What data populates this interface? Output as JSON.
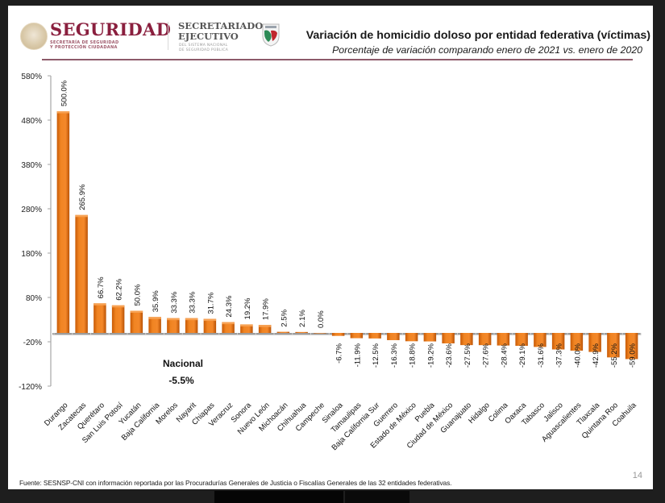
{
  "header": {
    "brand": "SEGURIDAD",
    "brand_sub_line1": "SECRETARÍA DE SEGURIDAD",
    "brand_sub_line2": "Y PROTECCIÓN CIUDADANA",
    "sec_line1": "SECRETARIADO",
    "sec_line2": "EJECUTIVO",
    "sec_sub_line1": "DEL SISTEMA NACIONAL",
    "sec_sub_line2": "DE SEGURIDAD PÚBLICA"
  },
  "chart_data": {
    "type": "bar",
    "title": "Variación de homicidio doloso por entidad federativa (víctimas)",
    "subtitle": "Porcentaje de variación comparando enero de 2021 vs. enero de 2020",
    "xlabel": "",
    "ylabel": "",
    "ylim": [
      -120,
      580
    ],
    "yticks": [
      580,
      480,
      380,
      280,
      180,
      80,
      -20,
      -120
    ],
    "ytick_labels": [
      "580%",
      "480%",
      "380%",
      "280%",
      "180%",
      "80%",
      "-20%",
      "-120%"
    ],
    "grid": false,
    "bar_color": "#E8761A",
    "categories": [
      "Durango",
      "Zacatecas",
      "Querétaro",
      "San Luis Potosí",
      "Yucatán",
      "Baja California",
      "Morelos",
      "Nayarit",
      "Chiapas",
      "Veracruz",
      "Sonora",
      "Nuevo León",
      "Michoacán",
      "Chihuahua",
      "Campeche",
      "Sinaloa",
      "Tamaulipas",
      "Baja California Sur",
      "Guerrero",
      "Estado de México",
      "Puebla",
      "Ciudad de México",
      "Guanajuato",
      "Hidalgo",
      "Colima",
      "Oaxaca",
      "Tabasco",
      "Jalisco",
      "Aguascalientes",
      "Tlaxcala",
      "Quintana Roo",
      "Coahuila"
    ],
    "values": [
      500.0,
      265.9,
      66.7,
      62.2,
      50.0,
      35.9,
      33.3,
      33.3,
      31.7,
      24.3,
      19.2,
      17.9,
      2.5,
      2.1,
      0.0,
      -6.7,
      -11.9,
      -12.5,
      -16.3,
      -18.8,
      -19.2,
      -23.6,
      -27.5,
      -27.6,
      -28.4,
      -29.1,
      -31.6,
      -37.3,
      -40.0,
      -42.9,
      -55.2,
      -59.0
    ],
    "value_labels": [
      "500.0%",
      "265.9%",
      "66.7%",
      "62.2%",
      "50.0%",
      "35.9%",
      "33.3%",
      "33.3%",
      "31.7%",
      "24.3%",
      "19.2%",
      "17.9%",
      "2.5%",
      "2.1%",
      "0.0%",
      "-6.7%",
      "-11.9%",
      "-12.5%",
      "-16.3%",
      "-18.8%",
      "-19.2%",
      "-23.6%",
      "-27.5%",
      "-27.6%",
      "-28.4%",
      "-29.1%",
      "-31.6%",
      "-37.3%",
      "-40.0%",
      "-42.9%",
      "-55.2%",
      "-59.0%"
    ],
    "annotation": {
      "label": "Nacional",
      "value": "-5.5%"
    }
  },
  "footer": {
    "source": "Fuente: SESNSP-CNI con información reportada por las Procuradurías Generales de Justicia o Fiscalías Generales de las 32 entidades federativas.",
    "page_number": "14"
  }
}
